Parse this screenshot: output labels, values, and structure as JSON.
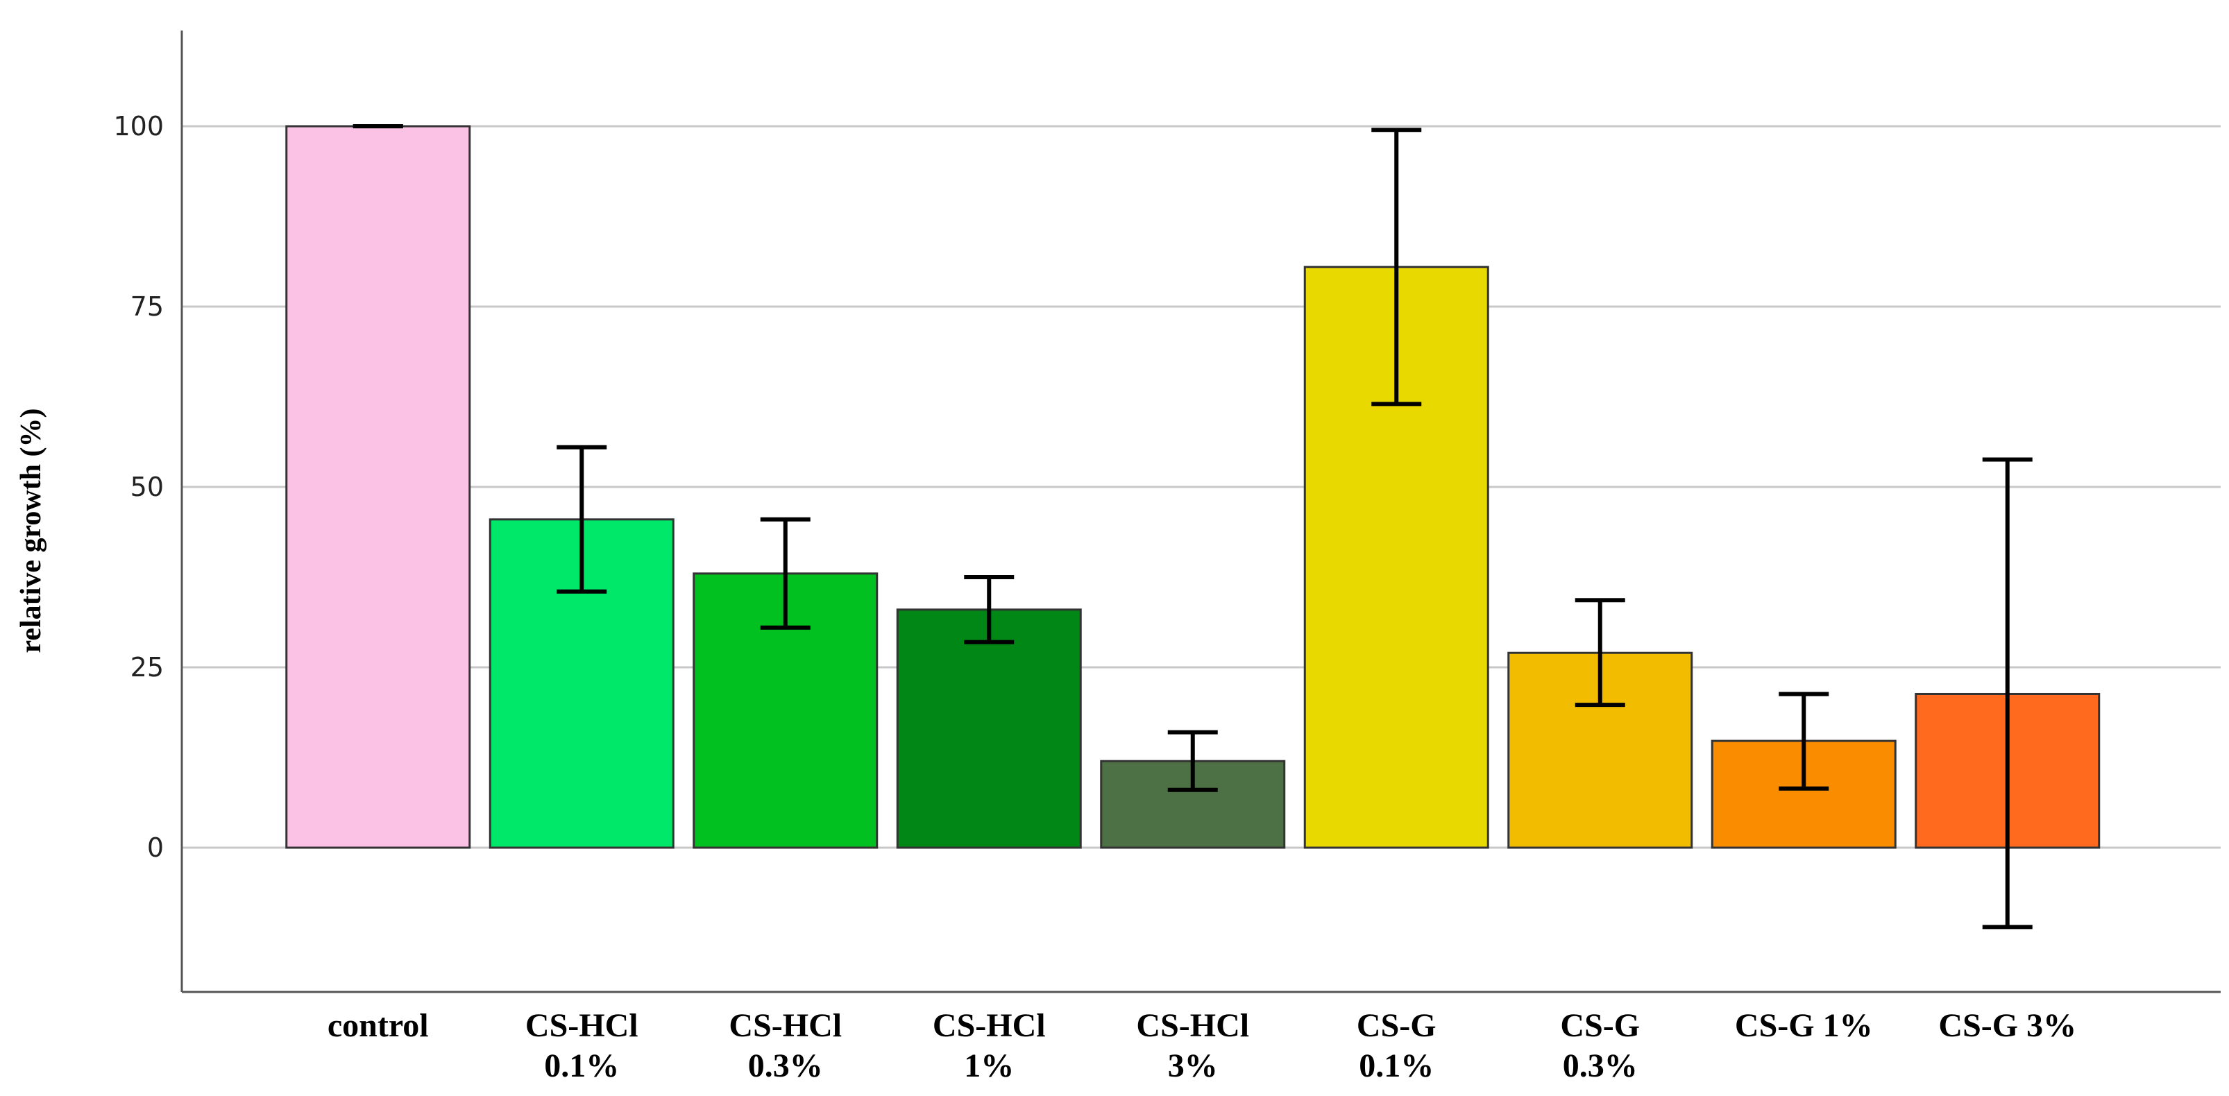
{
  "chart_data": {
    "type": "bar",
    "title": "",
    "xlabel": "",
    "ylabel": "relative growth (%)",
    "ylim": [
      -20,
      112
    ],
    "yticks": [
      0,
      25,
      50,
      75,
      100
    ],
    "grid": true,
    "categories": [
      [
        "control"
      ],
      [
        "CS-HCl",
        "0.1%"
      ],
      [
        "CS-HCl",
        "0.3%"
      ],
      [
        "CS-HCl",
        "1%"
      ],
      [
        "CS-HCl",
        "3%"
      ],
      [
        "CS-G",
        "0.1%"
      ],
      [
        "CS-G",
        "0.3%"
      ],
      [
        "CS-G 1%"
      ],
      [
        "CS-G 3%"
      ]
    ],
    "values": [
      100,
      45.5,
      38,
      33,
      12,
      80.5,
      27,
      14.8,
      21.3
    ],
    "error_low": [
      100,
      35.5,
      30.5,
      28.5,
      8,
      61.5,
      19.8,
      8.2,
      -11
    ],
    "error_high": [
      100,
      55.5,
      45.5,
      37.5,
      16,
      99.5,
      34.3,
      21.3,
      53.8
    ],
    "colors": [
      "#FBC2E6",
      "#00E86A",
      "#00C120",
      "#008716",
      "#4D7044",
      "#E8D900",
      "#F2BD00",
      "#FA8C00",
      "#FF6A1E"
    ]
  }
}
